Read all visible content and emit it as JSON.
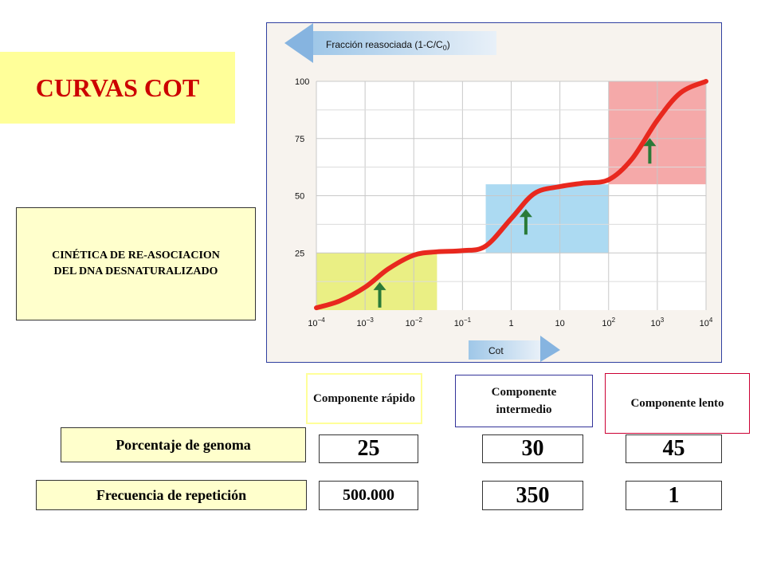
{
  "slide": {
    "title": "CURVAS COT",
    "kinetics_label": "CINÉTICA DE RE-ASOCIACION DEL DNA DESNATURALIZADO",
    "components": [
      {
        "label": "Componente rápido"
      },
      {
        "label": "Componente intermedio"
      },
      {
        "label": "Componente lento"
      }
    ],
    "rows": [
      {
        "label": "Porcentaje de genoma",
        "values": [
          "25",
          "30",
          "45"
        ]
      },
      {
        "label": "Frecuencia de repetición",
        "values": [
          "500.000",
          "350",
          "1"
        ]
      }
    ]
  },
  "chart_data": {
    "type": "line",
    "ylabel": "Fracción reasociada (1-C/C",
    "ylabel_subscript": "0",
    "ylabel_close": ")",
    "xlabel": "Cot",
    "x_scale": "log",
    "xlim": [
      0.0001,
      10000
    ],
    "ylim": [
      0,
      100
    ],
    "y_ticks": [
      "25",
      "50",
      "75",
      "100"
    ],
    "y_tick_values": [
      25,
      50,
      75,
      100
    ],
    "x_tick_values": [
      0.0001,
      0.001,
      0.01,
      0.1,
      1,
      10,
      100,
      1000,
      10000
    ],
    "x_tick_labels": [
      {
        "base": "10",
        "exp": "−4"
      },
      {
        "base": "10",
        "exp": "−3"
      },
      {
        "base": "10",
        "exp": "−2"
      },
      {
        "base": "10",
        "exp": "−1"
      },
      {
        "base": "1",
        "exp": ""
      },
      {
        "base": "10",
        "exp": ""
      },
      {
        "base": "10",
        "exp": "2"
      },
      {
        "base": "10",
        "exp": "3"
      },
      {
        "base": "10",
        "exp": "4"
      }
    ],
    "grid": true,
    "series": [
      {
        "color": "#e8281e",
        "x": [
          0.0001,
          0.0003,
          0.001,
          0.003,
          0.01,
          0.03,
          0.1,
          0.3,
          1,
          3,
          10,
          30,
          100,
          300,
          1000,
          3000,
          10000
        ],
        "y": [
          1,
          4,
          10,
          18,
          24,
          25.5,
          26,
          28,
          40,
          51,
          54,
          55.5,
          57,
          66,
          83,
          95,
          100
        ]
      }
    ],
    "regions": [
      {
        "name": "rápido",
        "color": "#e6ec6e",
        "x": [
          0.0001,
          0.03
        ],
        "y": [
          0,
          25
        ]
      },
      {
        "name": "intermedio",
        "color": "#9ed3f0",
        "x": [
          0.3,
          100
        ],
        "y": [
          25,
          55
        ]
      },
      {
        "name": "lento",
        "color": "#f39a9a",
        "x": [
          100,
          10000
        ],
        "y": [
          55,
          100
        ]
      }
    ],
    "arrows_x": [
      0.002,
      2,
      700
    ],
    "arrow_color": "#2a7a38"
  }
}
